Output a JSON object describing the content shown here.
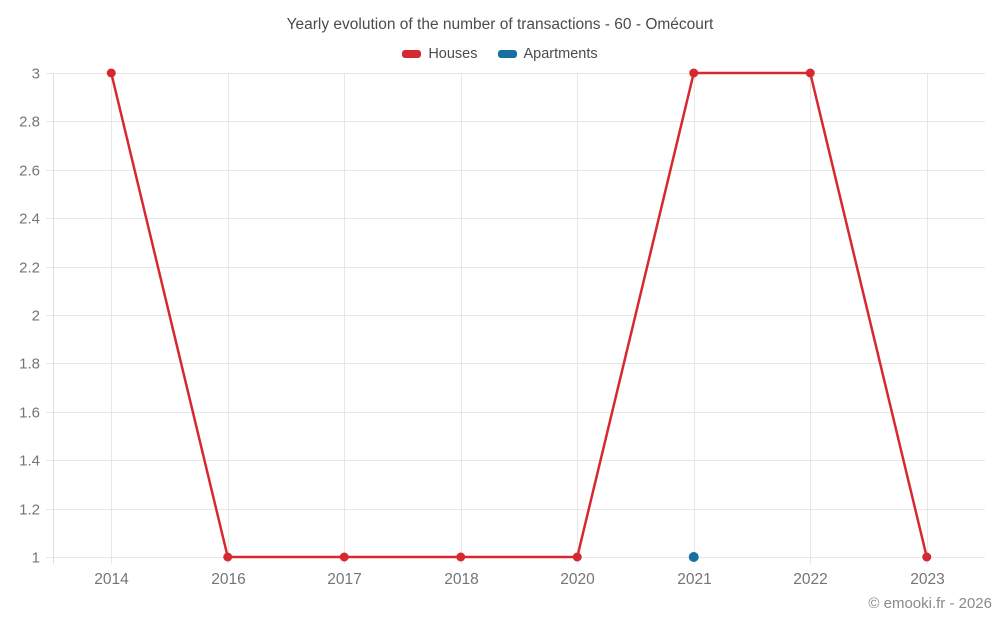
{
  "watermark": "© emooki.fr - 2026",
  "colors": {
    "grid": "#e7e7e7",
    "axis_line": "#e0e0e0",
    "tick_label": "#757575",
    "title_text": "#4c4c4c",
    "watermark_text": "#8a8a8a",
    "houses": "#d7282f",
    "apartments": "#1770a2"
  },
  "chart_data": {
    "type": "line",
    "title": "Yearly evolution of the number of transactions - 60 - Omécourt",
    "categories": [
      "2014",
      "2016",
      "2017",
      "2018",
      "2020",
      "2021",
      "2022",
      "2023"
    ],
    "series": [
      {
        "name": "Houses",
        "color": "#d7282f",
        "values": [
          3,
          1,
          1,
          1,
          1,
          3,
          3,
          1
        ],
        "marker_radius": 4.5,
        "line_width": 2.5
      },
      {
        "name": "Apartments",
        "color": "#1770a2",
        "values": [
          null,
          null,
          null,
          null,
          null,
          1,
          null,
          null
        ],
        "marker_radius": 5,
        "line_width": 2.5
      }
    ],
    "ylim": [
      1,
      3
    ],
    "ytick_step": 0.2,
    "ytick_labels": [
      "1",
      "1.2",
      "1.4",
      "1.6",
      "1.8",
      "2",
      "2.2",
      "2.4",
      "2.6",
      "2.8",
      "3"
    ],
    "grid": true,
    "legend_position": "top"
  }
}
